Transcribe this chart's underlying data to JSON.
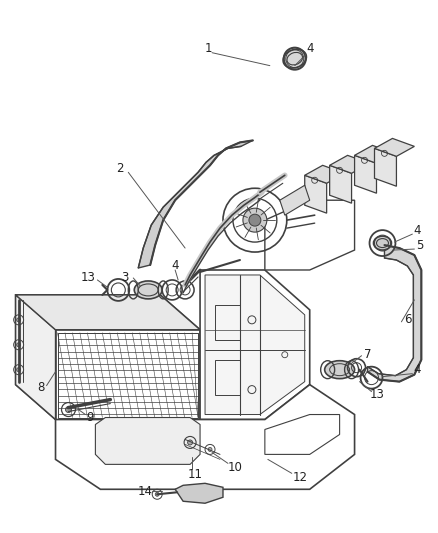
{
  "background_color": "#ffffff",
  "line_color": "#404040",
  "label_color": "#222222",
  "figsize": [
    4.38,
    5.33
  ],
  "dpi": 100
}
